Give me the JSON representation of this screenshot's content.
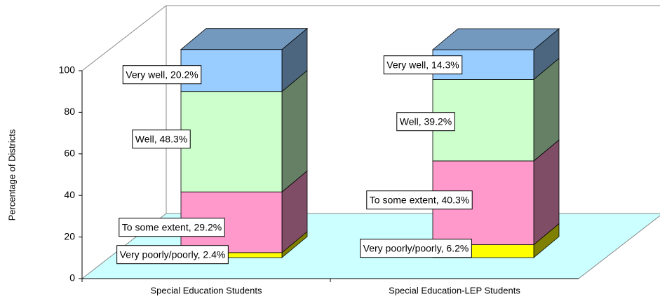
{
  "chart_data": {
    "type": "bar3d_stacked",
    "y_label": "Percentage of Districts",
    "categories": [
      "Special Education Students",
      "Special Education-LEP Students"
    ],
    "series": [
      {
        "name": "Very poorly/poorly",
        "color": "#ffff00",
        "values": [
          2.4,
          6.2
        ],
        "value_labels": [
          "Very poorly/poorly, 2.4%",
          "Very poorly/poorly, 6.2%"
        ]
      },
      {
        "name": "To some extent",
        "color": "#ff99cc",
        "values": [
          29.2,
          40.3
        ],
        "value_labels": [
          "To some extent, 29.2%",
          "To some extent, 40.3%"
        ]
      },
      {
        "name": "Well",
        "color": "#ccffcc",
        "values": [
          48.3,
          39.2
        ],
        "value_labels": [
          "Well, 48.3%",
          "Well, 39.2%"
        ]
      },
      {
        "name": "Very well",
        "color": "#99ccff",
        "values": [
          20.2,
          14.3
        ],
        "value_labels": [
          "Very well, 20.2%",
          "Very well, 14.3%"
        ]
      }
    ],
    "ylim": [
      0,
      100
    ],
    "yticks": [
      0,
      20,
      40,
      60,
      80,
      100
    ]
  }
}
